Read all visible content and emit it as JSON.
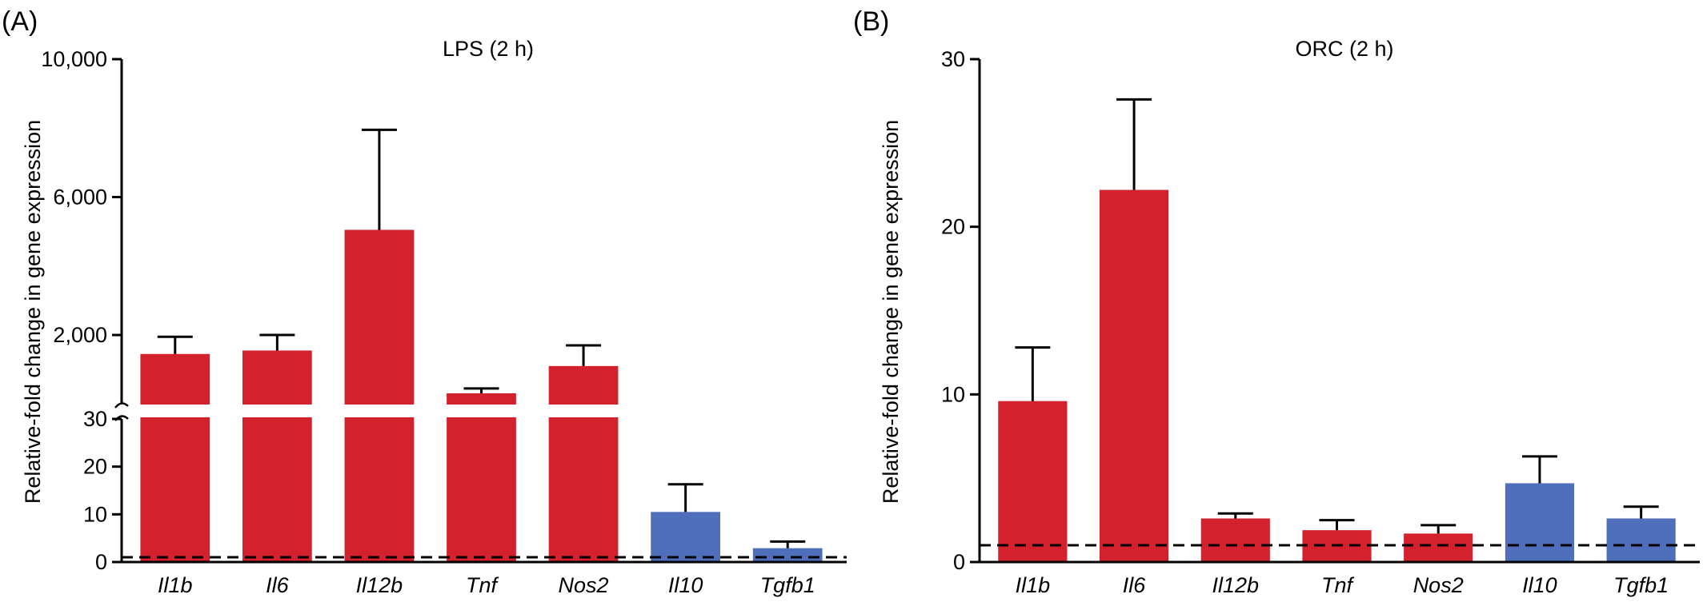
{
  "chart_data": [
    {
      "type": "bar",
      "panel_label": "(A)",
      "title": "LPS (2 h)",
      "xlabel": "",
      "ylabel": "Relative-fold change in gene expression",
      "categories": [
        "Il1b",
        "Il6",
        "Il12b",
        "Tnf",
        "Nos2",
        "Il10",
        "Tgfb1"
      ],
      "values": [
        1450,
        1550,
        5050,
        310,
        1100,
        10.5,
        2.9
      ],
      "error_upper": [
        1950,
        2000,
        7950,
        450,
        1700,
        16.3,
        4.3
      ],
      "bar_colors": [
        "#d3212d",
        "#d3212d",
        "#d3212d",
        "#d3212d",
        "#d3212d",
        "#4f6fbb",
        "#4f6fbb"
      ],
      "broken_axis": true,
      "ylim_lower": [
        0,
        30
      ],
      "ylim_upper": [
        30,
        10000
      ],
      "yticks_lower": [
        "0",
        "10",
        "20",
        "30"
      ],
      "yticks_upper": [
        "2,000",
        "6,000",
        "10,000"
      ],
      "reference_line": 1
    },
    {
      "type": "bar",
      "panel_label": "(B)",
      "title": "ORC (2 h)",
      "xlabel": "",
      "ylabel": "Relative-fold change in gene expression",
      "categories": [
        "Il1b",
        "Il6",
        "Il12b",
        "Tnf",
        "Nos2",
        "Il10",
        "Tgfb1"
      ],
      "values": [
        9.6,
        22.2,
        2.6,
        1.9,
        1.7,
        4.7,
        2.6
      ],
      "error_upper": [
        12.8,
        27.6,
        2.9,
        2.5,
        2.2,
        6.3,
        3.3
      ],
      "bar_colors": [
        "#d3212d",
        "#d3212d",
        "#d3212d",
        "#d3212d",
        "#d3212d",
        "#4f6fbb",
        "#4f6fbb"
      ],
      "ylim": [
        0,
        30
      ],
      "yticks": [
        "0",
        "10",
        "20",
        "30"
      ],
      "reference_line": 1
    }
  ]
}
